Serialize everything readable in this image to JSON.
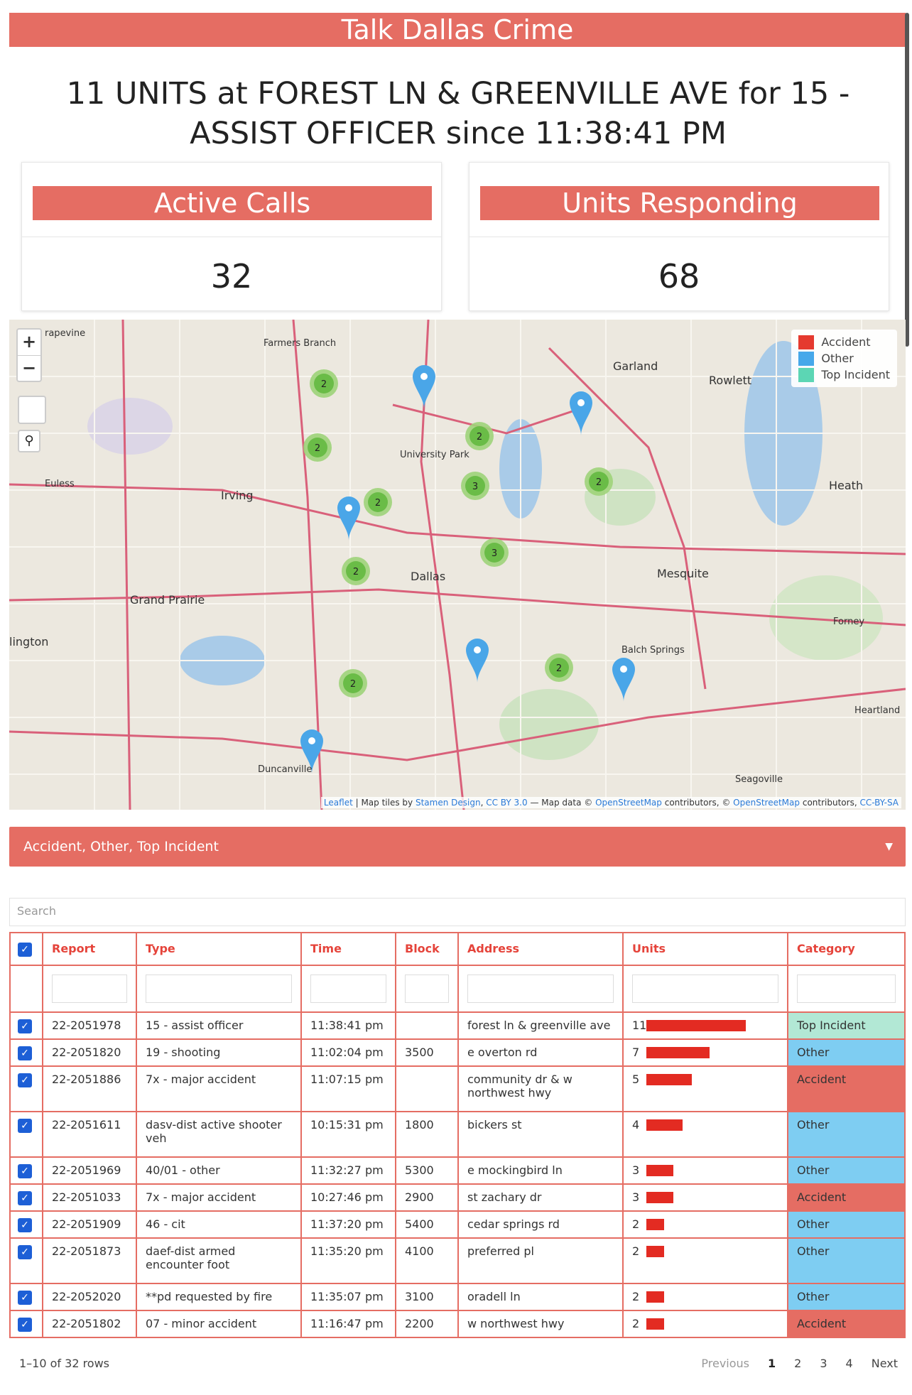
{
  "app_title": "Talk Dallas Crime",
  "headline": "11 UNITS at FOREST LN & GREENVILLE AVE for 15 - ASSIST OFFICER since 11:38:41 PM",
  "cards": {
    "active_calls": {
      "label": "Active Calls",
      "value": "32"
    },
    "units_responding": {
      "label": "Units Responding",
      "value": "68"
    }
  },
  "map": {
    "zoom_in": "+",
    "zoom_out": "−",
    "search_icon": "search-icon",
    "legend": [
      {
        "label": "Accident",
        "color": "#e53a2f"
      },
      {
        "label": "Other",
        "color": "#46a8ea"
      },
      {
        "label": "Top Incident",
        "color": "#5cd6b4"
      }
    ],
    "cities": {
      "garland": "Garland",
      "rowlett": "Rowlett",
      "heath": "Heath",
      "irving": "Irving",
      "dallas": "Dallas",
      "mesquite": "Mesquite",
      "grand_prairie": "Grand Prairie",
      "university_park": "University Park",
      "farmers_branch": "Farmers Branch",
      "euless": "Euless",
      "balch_springs": "Balch Springs",
      "duncanville": "Duncanville",
      "forney": "Forney",
      "heartland": "Heartland",
      "seagoville": "Seagoville",
      "arlington": "lington",
      "grapevine": "rapevine"
    },
    "clusters": [
      "2",
      "2",
      "2",
      "3",
      "2",
      "2",
      "3",
      "2",
      "2",
      "2"
    ],
    "attribution": {
      "leaflet": "Leaflet",
      "tiles_prefix": "Map tiles by",
      "stamen": "Stamen Design",
      "cc": "CC BY 3.0",
      "data_prefix": "— Map data ©",
      "osm": "OpenStreetMap",
      "contrib": "contributors, ©",
      "osm2": "OpenStreetMap",
      "contrib2": "contributors,",
      "ccsa": "CC-BY-SA"
    }
  },
  "filter": {
    "label": "Accident, Other, Top Incident"
  },
  "search": {
    "placeholder": "Search"
  },
  "table": {
    "columns": [
      "Report",
      "Type",
      "Time",
      "Block",
      "Address",
      "Units",
      "Category"
    ],
    "rows": [
      {
        "report": "22-2051978",
        "type": "15 - assist officer",
        "time": "11:38:41 pm",
        "block": "",
        "address": "forest ln & greenville ave",
        "units": 11,
        "units_label": "11",
        "category": "Top Incident",
        "cat_class": "cat-top"
      },
      {
        "report": "22-2051820",
        "type": "19 - shooting",
        "time": "11:02:04 pm",
        "block": "3500",
        "address": "e overton rd",
        "units": 7,
        "units_label": "7",
        "category": "Other",
        "cat_class": "cat-other"
      },
      {
        "report": "22-2051886",
        "type": "7x - major accident",
        "time": "11:07:15 pm",
        "block": "",
        "address": "community dr & w northwest hwy",
        "units": 5,
        "units_label": "5",
        "category": "Accident",
        "cat_class": "cat-accident"
      },
      {
        "report": "22-2051611",
        "type": "dasv-dist active shooter veh",
        "time": "10:15:31 pm",
        "block": "1800",
        "address": "bickers st",
        "units": 4,
        "units_label": "4",
        "category": "Other",
        "cat_class": "cat-other"
      },
      {
        "report": "22-2051969",
        "type": "40/01 - other",
        "time": "11:32:27 pm",
        "block": "5300",
        "address": "e mockingbird ln",
        "units": 3,
        "units_label": "3",
        "category": "Other",
        "cat_class": "cat-other"
      },
      {
        "report": "22-2051033",
        "type": "7x - major accident",
        "time": "10:27:46 pm",
        "block": "2900",
        "address": "st zachary dr",
        "units": 3,
        "units_label": "3",
        "category": "Accident",
        "cat_class": "cat-accident"
      },
      {
        "report": "22-2051909",
        "type": "46 - cit",
        "time": "11:37:20 pm",
        "block": "5400",
        "address": "cedar springs rd",
        "units": 2,
        "units_label": "2",
        "category": "Other",
        "cat_class": "cat-other"
      },
      {
        "report": "22-2051873",
        "type": "daef-dist armed encounter foot",
        "time": "11:35:20 pm",
        "block": "4100",
        "address": "preferred pl",
        "units": 2,
        "units_label": "2",
        "category": "Other",
        "cat_class": "cat-other"
      },
      {
        "report": "22-2052020",
        "type": "**pd requested by fire",
        "time": "11:35:07 pm",
        "block": "3100",
        "address": "oradell ln",
        "units": 2,
        "units_label": "2",
        "category": "Other",
        "cat_class": "cat-other"
      },
      {
        "report": "22-2051802",
        "type": "07 - minor accident",
        "time": "11:16:47 pm",
        "block": "2200",
        "address": "w northwest hwy",
        "units": 2,
        "units_label": "2",
        "category": "Accident",
        "cat_class": "cat-accident"
      }
    ]
  },
  "footer": {
    "rows_info": "1–10 of 32 rows",
    "previous": "Previous",
    "pages": [
      "1",
      "2",
      "3",
      "4"
    ],
    "next": "Next"
  }
}
